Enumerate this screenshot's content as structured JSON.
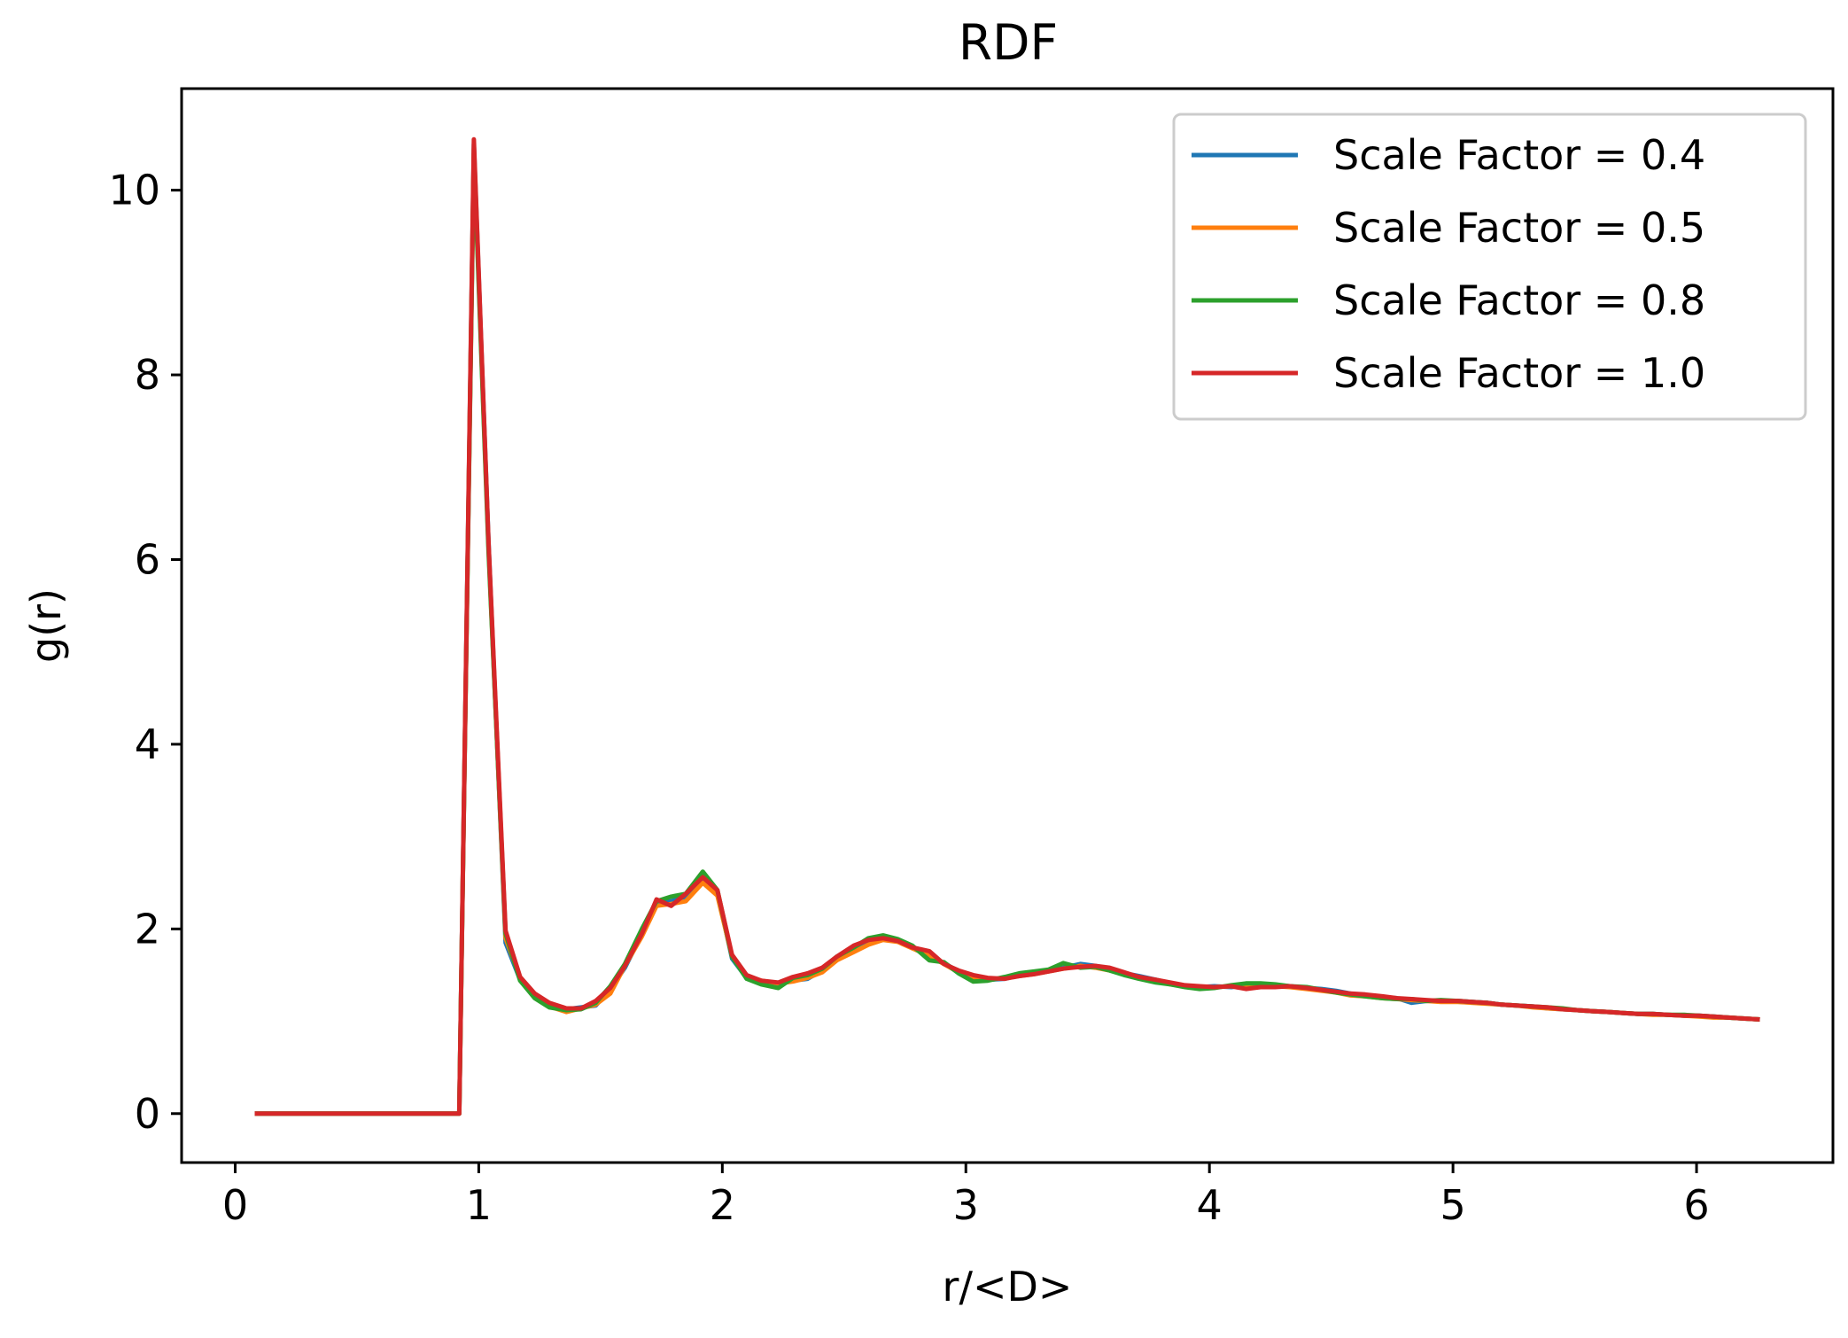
{
  "chart_data": {
    "type": "line",
    "title": "RDF",
    "xlabel": "r/<D>",
    "ylabel": "g(r)",
    "xlim": [
      -0.22,
      6.56
    ],
    "ylim": [
      -0.53,
      11.1
    ],
    "xticks": [
      0,
      1,
      2,
      3,
      4,
      5,
      6
    ],
    "yticks": [
      0,
      2,
      4,
      6,
      8,
      10
    ],
    "legend_position": "top-right",
    "grid": false,
    "x": [
      0.08,
      0.9,
      0.92,
      0.98,
      1.04,
      1.11,
      1.17,
      1.23,
      1.29,
      1.36,
      1.42,
      1.48,
      1.54,
      1.6,
      1.67,
      1.73,
      1.79,
      1.85,
      1.92,
      1.98,
      2.04,
      2.1,
      2.16,
      2.23,
      2.29,
      2.35,
      2.41,
      2.47,
      2.54,
      2.6,
      2.66,
      2.72,
      2.78,
      2.85,
      2.91,
      2.97,
      3.03,
      3.09,
      3.16,
      3.22,
      3.28,
      3.34,
      3.4,
      3.47,
      3.53,
      3.59,
      3.65,
      3.71,
      3.78,
      3.84,
      3.9,
      3.96,
      4.02,
      4.09,
      4.15,
      4.21,
      4.27,
      4.33,
      4.4,
      4.46,
      4.52,
      4.58,
      4.64,
      4.71,
      4.77,
      4.83,
      4.89,
      4.95,
      5.02,
      5.08,
      5.14,
      5.2,
      5.26,
      5.33,
      5.39,
      5.45,
      5.51,
      5.57,
      5.64,
      5.7,
      5.76,
      5.82,
      5.88,
      5.95,
      6.01,
      6.07,
      6.13,
      6.19,
      6.26
    ],
    "series": [
      {
        "name": "Scale Factor = 0.4",
        "color": "#1f77b4",
        "values": [
          0.0,
          0.0,
          0.0,
          10.5,
          6.2,
          1.85,
          1.45,
          1.28,
          1.18,
          1.13,
          1.15,
          1.17,
          1.35,
          1.58,
          1.95,
          2.28,
          2.3,
          2.35,
          2.55,
          2.4,
          1.68,
          1.47,
          1.42,
          1.4,
          1.44,
          1.46,
          1.55,
          1.68,
          1.78,
          1.85,
          1.9,
          1.88,
          1.8,
          1.72,
          1.63,
          1.54,
          1.47,
          1.45,
          1.46,
          1.5,
          1.52,
          1.55,
          1.58,
          1.62,
          1.6,
          1.57,
          1.52,
          1.49,
          1.45,
          1.41,
          1.38,
          1.37,
          1.38,
          1.37,
          1.39,
          1.39,
          1.39,
          1.38,
          1.36,
          1.35,
          1.33,
          1.3,
          1.28,
          1.26,
          1.25,
          1.2,
          1.22,
          1.22,
          1.22,
          1.21,
          1.2,
          1.18,
          1.17,
          1.16,
          1.14,
          1.13,
          1.12,
          1.11,
          1.1,
          1.09,
          1.08,
          1.08,
          1.07,
          1.06,
          1.06,
          1.05,
          1.04,
          1.03,
          1.02
        ]
      },
      {
        "name": "Scale Factor = 0.5",
        "color": "#ff7f0e",
        "values": [
          0.0,
          0.0,
          0.0,
          10.45,
          6.15,
          1.9,
          1.47,
          1.27,
          1.16,
          1.1,
          1.14,
          1.18,
          1.3,
          1.6,
          1.92,
          2.25,
          2.27,
          2.3,
          2.5,
          2.36,
          1.7,
          1.48,
          1.44,
          1.41,
          1.43,
          1.47,
          1.53,
          1.66,
          1.75,
          1.83,
          1.88,
          1.86,
          1.79,
          1.71,
          1.62,
          1.53,
          1.46,
          1.45,
          1.47,
          1.49,
          1.51,
          1.54,
          1.57,
          1.6,
          1.58,
          1.55,
          1.51,
          1.48,
          1.43,
          1.4,
          1.38,
          1.36,
          1.37,
          1.38,
          1.37,
          1.38,
          1.38,
          1.37,
          1.35,
          1.33,
          1.31,
          1.28,
          1.27,
          1.25,
          1.24,
          1.23,
          1.22,
          1.21,
          1.21,
          1.2,
          1.19,
          1.18,
          1.17,
          1.15,
          1.14,
          1.13,
          1.12,
          1.11,
          1.1,
          1.09,
          1.08,
          1.07,
          1.07,
          1.06,
          1.05,
          1.04,
          1.04,
          1.03,
          1.02
        ]
      },
      {
        "name": "Scale Factor = 0.8",
        "color": "#2ca02c",
        "values": [
          0.0,
          0.0,
          0.0,
          10.4,
          6.1,
          1.95,
          1.44,
          1.25,
          1.15,
          1.12,
          1.13,
          1.2,
          1.38,
          1.62,
          2.0,
          2.3,
          2.35,
          2.38,
          2.62,
          2.42,
          1.7,
          1.46,
          1.4,
          1.36,
          1.47,
          1.5,
          1.57,
          1.7,
          1.8,
          1.9,
          1.93,
          1.89,
          1.82,
          1.66,
          1.64,
          1.52,
          1.43,
          1.44,
          1.48,
          1.52,
          1.54,
          1.56,
          1.63,
          1.58,
          1.59,
          1.55,
          1.5,
          1.46,
          1.42,
          1.4,
          1.37,
          1.35,
          1.36,
          1.39,
          1.41,
          1.41,
          1.4,
          1.38,
          1.37,
          1.34,
          1.31,
          1.29,
          1.27,
          1.25,
          1.24,
          1.24,
          1.22,
          1.23,
          1.22,
          1.21,
          1.2,
          1.18,
          1.17,
          1.16,
          1.15,
          1.14,
          1.12,
          1.11,
          1.1,
          1.09,
          1.08,
          1.08,
          1.07,
          1.07,
          1.06,
          1.05,
          1.04,
          1.03,
          1.02
        ]
      },
      {
        "name": "Scale Factor = 1.0",
        "color": "#d62728",
        "values": [
          0.0,
          0.0,
          0.0,
          10.55,
          6.2,
          1.98,
          1.48,
          1.3,
          1.2,
          1.14,
          1.14,
          1.22,
          1.36,
          1.6,
          1.95,
          2.32,
          2.25,
          2.38,
          2.56,
          2.42,
          1.72,
          1.5,
          1.44,
          1.42,
          1.48,
          1.52,
          1.58,
          1.7,
          1.82,
          1.88,
          1.9,
          1.87,
          1.8,
          1.76,
          1.62,
          1.55,
          1.5,
          1.47,
          1.46,
          1.49,
          1.51,
          1.54,
          1.57,
          1.59,
          1.6,
          1.58,
          1.53,
          1.48,
          1.45,
          1.42,
          1.39,
          1.38,
          1.37,
          1.38,
          1.35,
          1.37,
          1.37,
          1.38,
          1.36,
          1.34,
          1.32,
          1.3,
          1.29,
          1.27,
          1.25,
          1.24,
          1.23,
          1.22,
          1.22,
          1.21,
          1.2,
          1.18,
          1.17,
          1.16,
          1.15,
          1.13,
          1.12,
          1.11,
          1.1,
          1.09,
          1.08,
          1.08,
          1.07,
          1.06,
          1.06,
          1.05,
          1.04,
          1.03,
          1.02
        ]
      }
    ]
  }
}
